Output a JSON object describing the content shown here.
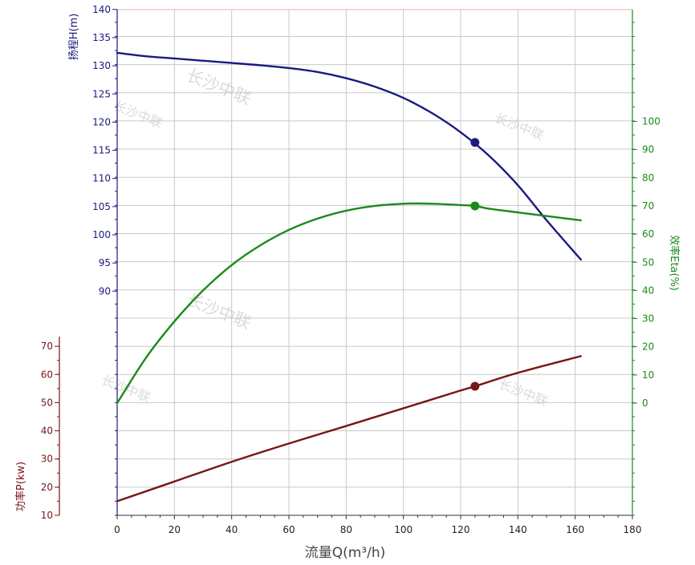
{
  "chart_data": {
    "type": "line",
    "title": "",
    "colors": {
      "head": "#1a1a80",
      "efficiency": "#1b8a1b",
      "power": "#7a1515",
      "grid": "#c8c8c8",
      "x_axis_title": "#444444"
    },
    "watermark": "长沙中联",
    "x_axis": {
      "label": "流量Q(m³/h)",
      "range": [
        0,
        180
      ],
      "ticks": [
        0,
        20,
        40,
        60,
        80,
        100,
        120,
        140,
        160,
        180
      ],
      "tick_labels": [
        "0",
        "20",
        "40",
        "60",
        "80",
        "100",
        "120",
        "140",
        "160",
        "180"
      ]
    },
    "grid": true,
    "axes": {
      "head": {
        "label": "扬程H(m)",
        "side": "left",
        "ticks": [
          90,
          95,
          100,
          105,
          110,
          115,
          120,
          125,
          130,
          135,
          140
        ],
        "tick_labels": [
          "90",
          "95",
          "100",
          "105",
          "110",
          "115",
          "120",
          "125",
          "130",
          "135",
          "140"
        ]
      },
      "power": {
        "label": "功率P(kw)",
        "side": "left",
        "ticks": [
          10,
          20,
          30,
          40,
          50,
          60,
          70
        ],
        "tick_labels": [
          "10",
          "20",
          "30",
          "40",
          "50",
          "60",
          "70"
        ]
      },
      "efficiency": {
        "label": "效率Eta(%)",
        "side": "right",
        "ticks": [
          0,
          10,
          20,
          30,
          40,
          50,
          60,
          70,
          80,
          90,
          100
        ],
        "tick_labels": [
          "0",
          "10",
          "20",
          "30",
          "40",
          "50",
          "60",
          "70",
          "80",
          "90",
          "100"
        ]
      }
    },
    "series": [
      {
        "axis": "head",
        "x": [
          0,
          10,
          20,
          30,
          40,
          50,
          60,
          70,
          80,
          90,
          100,
          110,
          120,
          130,
          140,
          150,
          162
        ],
        "y": [
          132.3,
          131.7,
          131.3,
          130.9,
          130.5,
          130.1,
          129.6,
          128.9,
          127.8,
          126.3,
          124.3,
          121.6,
          118.2,
          114.0,
          108.8,
          102.6,
          95.6
        ]
      },
      {
        "axis": "efficiency",
        "x": [
          0,
          10,
          20,
          30,
          40,
          50,
          60,
          70,
          80,
          90,
          100,
          110,
          120,
          125,
          130,
          140,
          150,
          162
        ],
        "y": [
          0,
          16,
          29,
          40,
          49,
          56,
          61.5,
          65.5,
          68.3,
          70.0,
          70.8,
          70.8,
          70.3,
          70.0,
          69.0,
          67.7,
          66.4,
          64.9
        ]
      },
      {
        "axis": "power",
        "x": [
          0,
          20,
          40,
          60,
          80,
          100,
          120,
          125,
          140,
          162
        ],
        "y": [
          15,
          22,
          29,
          35.5,
          41.7,
          48,
          54.3,
          55.8,
          60.6,
          66.5
        ]
      }
    ],
    "operating_point": {
      "flow": 125,
      "head": 116.4,
      "efficiency": 70,
      "power": 55.8
    }
  }
}
